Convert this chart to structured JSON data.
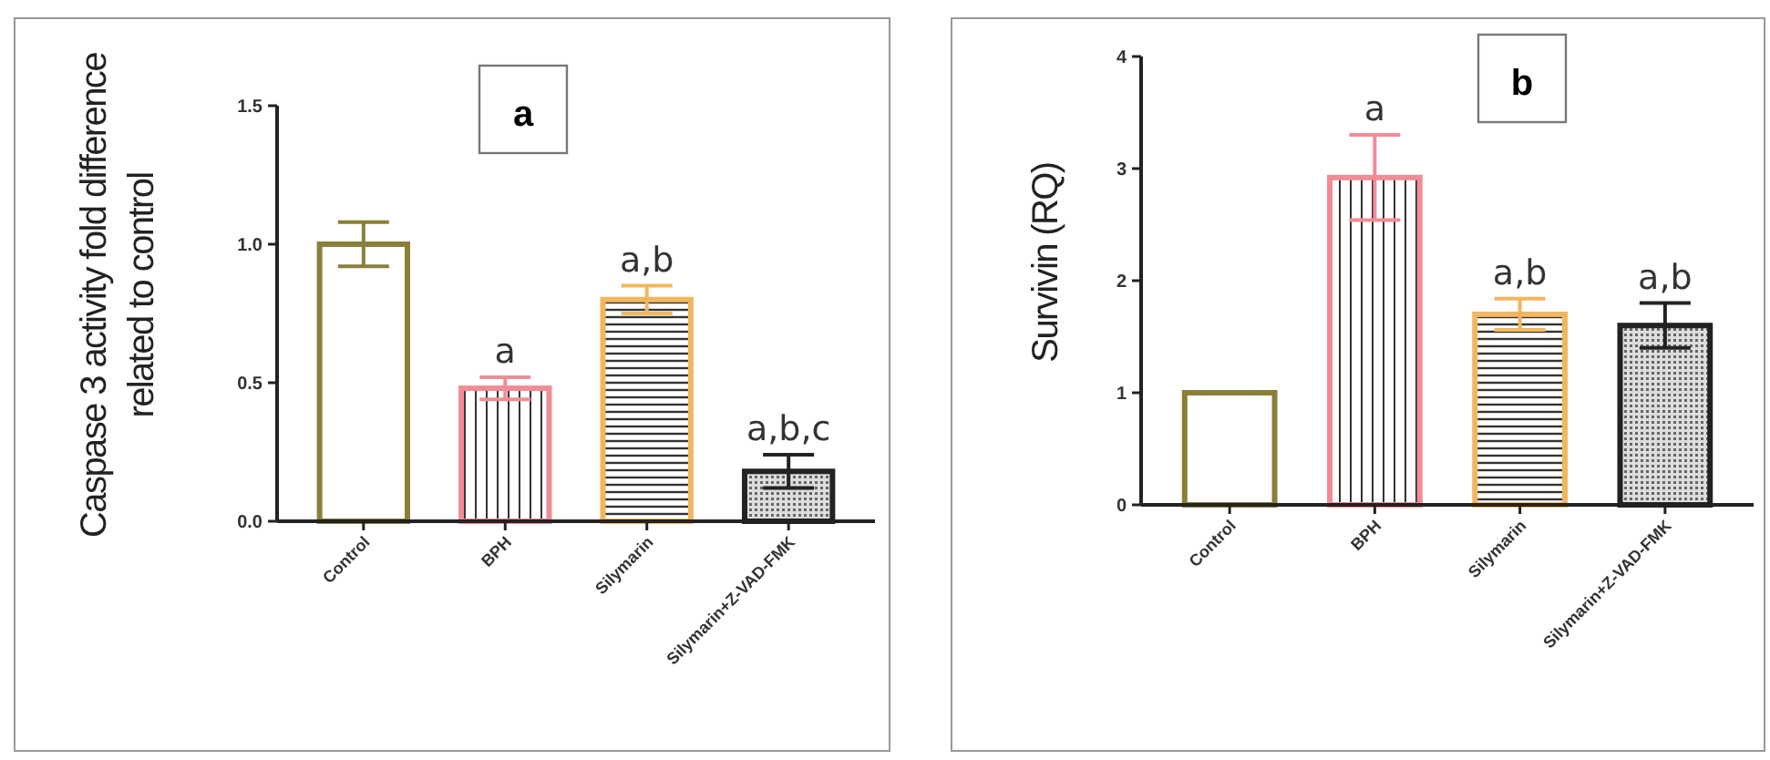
{
  "chart_data": [
    {
      "type": "bar",
      "title": "a",
      "ylabel": "Caspase 3 activity fold difference\nrelated to control",
      "categories": [
        "Control",
        "BPH",
        "Silymarin",
        "Silymarin+Z-VAD-FMK"
      ],
      "values": [
        1.0,
        0.48,
        0.8,
        0.18
      ],
      "errors": [
        0.08,
        0.04,
        0.05,
        0.06
      ],
      "colors": [
        "#8a7f3a",
        "#f08c96",
        "#f2b65e",
        "#222222"
      ],
      "ylim": [
        0,
        1.5
      ],
      "yticks": [
        {
          "value": 0,
          "label": "0.0"
        },
        0.5,
        {
          "value": 1,
          "label": "1.0"
        },
        1.5
      ],
      "grid": false,
      "annotations": [
        {
          "text": "a",
          "x": "BPH",
          "y": 0.52
        },
        {
          "text": "a,b",
          "x": "Silymarin",
          "y": 0.85
        },
        {
          "text": "a,b,c",
          "x": "Silymarin+Z-VAD-FMK",
          "y": 0.24
        }
      ]
    },
    {
      "type": "bar",
      "title": "b",
      "ylabel": "Survivin (RQ)",
      "categories": [
        "Control",
        "BPH",
        "Silymarin",
        "Silymarin+Z-VAD-FMK"
      ],
      "values": [
        1.0,
        2.92,
        1.7,
        1.6
      ],
      "errors": [
        null,
        0.38,
        0.14,
        0.2
      ],
      "colors": [
        "#8a7f3a",
        "#f08c96",
        "#f2b65e",
        "#222222"
      ],
      "ylim": [
        0,
        4
      ],
      "yticks": [
        0,
        1,
        2,
        3,
        4
      ],
      "grid": false,
      "annotations": [
        {
          "text": "a",
          "x": "BPH",
          "y": 3.3
        },
        {
          "text": "a,b",
          "x": "Silymarin",
          "y": 1.84
        },
        {
          "text": "a,b",
          "x": "Silymarin+Z-VAD-FMK",
          "y": 1.8
        }
      ]
    }
  ]
}
